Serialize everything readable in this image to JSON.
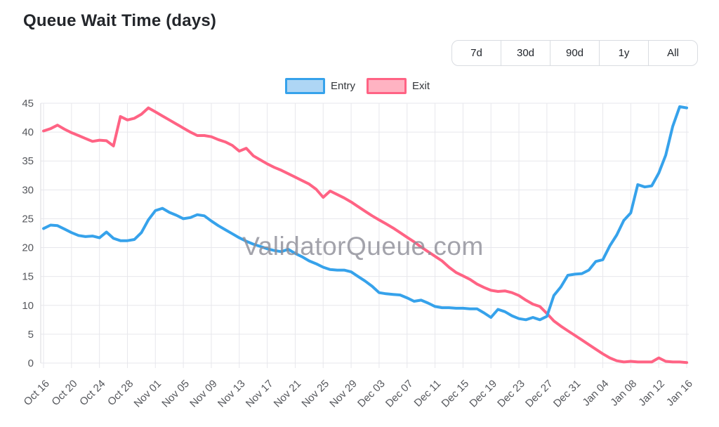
{
  "header": {
    "title": "Queue Wait Time (days)"
  },
  "controls": {
    "ranges": [
      "7d",
      "30d",
      "90d",
      "1y",
      "All"
    ]
  },
  "legend": {
    "entry_label": "Entry",
    "exit_label": "Exit"
  },
  "watermark": {
    "text": "ValidatorQueue.com"
  },
  "colors": {
    "entry_line": "#36a2eb",
    "entry_fill": "#aed6f5",
    "exit_line": "#ff6384",
    "exit_fill": "#ffb3c2",
    "grid": "#e7e7ec",
    "axis_border": "#d9d9de",
    "tick_text": "#55575c",
    "watermark_text": "#8d8d97"
  },
  "chart_data": {
    "type": "line",
    "title": "Queue Wait Time (days)",
    "legend_position": "top",
    "grid": true,
    "ylim": [
      0,
      45
    ],
    "yticks": [
      0,
      5,
      10,
      15,
      20,
      25,
      30,
      35,
      40,
      45
    ],
    "x_tick_every": 4,
    "x_tick_labels": [
      "Oct 16",
      "Oct 20",
      "Oct 24",
      "Oct 28",
      "Nov 01",
      "Nov 05",
      "Nov 09",
      "Nov 13",
      "Nov 17",
      "Nov 21",
      "Nov 25",
      "Nov 29",
      "Dec 03",
      "Dec 07",
      "Dec 11",
      "Dec 15",
      "Dec 19",
      "Dec 23",
      "Dec 27",
      "Dec 31",
      "Jan 04",
      "Jan 08",
      "Jan 12",
      "Jan 16"
    ],
    "x": [
      "Oct 16",
      "Oct 17",
      "Oct 18",
      "Oct 19",
      "Oct 20",
      "Oct 21",
      "Oct 22",
      "Oct 23",
      "Oct 24",
      "Oct 25",
      "Oct 26",
      "Oct 27",
      "Oct 28",
      "Oct 29",
      "Oct 30",
      "Oct 31",
      "Nov 01",
      "Nov 02",
      "Nov 03",
      "Nov 04",
      "Nov 05",
      "Nov 06",
      "Nov 07",
      "Nov 08",
      "Nov 09",
      "Nov 10",
      "Nov 11",
      "Nov 12",
      "Nov 13",
      "Nov 14",
      "Nov 15",
      "Nov 16",
      "Nov 17",
      "Nov 18",
      "Nov 19",
      "Nov 20",
      "Nov 21",
      "Nov 22",
      "Nov 23",
      "Nov 24",
      "Nov 25",
      "Nov 26",
      "Nov 27",
      "Nov 28",
      "Nov 29",
      "Nov 30",
      "Dec 01",
      "Dec 02",
      "Dec 03",
      "Dec 04",
      "Dec 05",
      "Dec 06",
      "Dec 07",
      "Dec 08",
      "Dec 09",
      "Dec 10",
      "Dec 11",
      "Dec 12",
      "Dec 13",
      "Dec 14",
      "Dec 15",
      "Dec 16",
      "Dec 17",
      "Dec 18",
      "Dec 19",
      "Dec 20",
      "Dec 21",
      "Dec 22",
      "Dec 23",
      "Dec 24",
      "Dec 25",
      "Dec 26",
      "Dec 27",
      "Dec 28",
      "Dec 29",
      "Dec 30",
      "Dec 31",
      "Jan 01",
      "Jan 02",
      "Jan 03",
      "Jan 04",
      "Jan 05",
      "Jan 06",
      "Jan 07",
      "Jan 08",
      "Jan 09",
      "Jan 10",
      "Jan 11",
      "Jan 12",
      "Jan 13",
      "Jan 14",
      "Jan 15",
      "Jan 16"
    ],
    "series": [
      {
        "name": "Entry",
        "color": "#36a2eb",
        "values": [
          23.3,
          23.9,
          23.8,
          23.2,
          22.6,
          22.1,
          21.9,
          22.0,
          21.7,
          22.7,
          21.6,
          21.2,
          21.2,
          21.4,
          22.6,
          24.8,
          26.4,
          26.8,
          26.1,
          25.6,
          25.0,
          25.2,
          25.7,
          25.5,
          24.6,
          23.8,
          23.1,
          22.4,
          21.7,
          21.1,
          20.6,
          20.2,
          19.8,
          19.5,
          19.3,
          19.7,
          19.0,
          18.4,
          17.7,
          17.2,
          16.6,
          16.2,
          16.1,
          16.1,
          15.8,
          15.0,
          14.2,
          13.3,
          12.2,
          12.0,
          11.9,
          11.8,
          11.3,
          10.7,
          10.9,
          10.4,
          9.8,
          9.6,
          9.6,
          9.5,
          9.5,
          9.4,
          9.4,
          8.7,
          7.9,
          9.3,
          8.9,
          8.2,
          7.7,
          7.5,
          7.9,
          7.5,
          8.1,
          11.7,
          13.2,
          15.2,
          15.4,
          15.5,
          16.1,
          17.6,
          17.9,
          20.3,
          22.2,
          24.7,
          26.0,
          30.9,
          30.5,
          30.7,
          32.9,
          36.0,
          41.0,
          44.4,
          44.2
        ]
      },
      {
        "name": "Exit",
        "color": "#ff6384",
        "values": [
          40.2,
          40.6,
          41.2,
          40.5,
          39.9,
          39.4,
          38.9,
          38.4,
          38.6,
          38.5,
          37.6,
          42.7,
          42.1,
          42.4,
          43.1,
          44.2,
          43.5,
          42.8,
          42.1,
          41.4,
          40.7,
          40.0,
          39.4,
          39.4,
          39.2,
          38.7,
          38.3,
          37.7,
          36.7,
          37.2,
          35.9,
          35.2,
          34.5,
          33.9,
          33.4,
          32.8,
          32.2,
          31.6,
          31.0,
          30.1,
          28.7,
          29.8,
          29.2,
          28.6,
          27.9,
          27.1,
          26.3,
          25.5,
          24.8,
          24.1,
          23.4,
          22.6,
          21.8,
          21.0,
          20.1,
          19.3,
          18.5,
          17.7,
          16.6,
          15.7,
          15.1,
          14.5,
          13.7,
          13.1,
          12.6,
          12.4,
          12.5,
          12.2,
          11.7,
          10.9,
          10.2,
          9.8,
          8.6,
          7.3,
          6.4,
          5.6,
          4.8,
          4.0,
          3.2,
          2.4,
          1.6,
          0.9,
          0.4,
          0.2,
          0.3,
          0.2,
          0.2,
          0.2,
          0.9,
          0.3,
          0.2,
          0.2,
          0.1
        ]
      }
    ]
  }
}
